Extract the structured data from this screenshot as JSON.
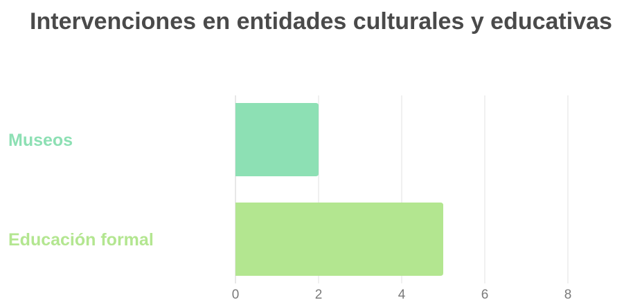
{
  "chart_data": {
    "type": "bar",
    "orientation": "horizontal",
    "title": "Intervenciones en entidades culturales y educativas",
    "categories": [
      "Museos",
      "Educación formal"
    ],
    "values": [
      2,
      5
    ],
    "colors": [
      "#8de0b4",
      "#b3e690"
    ],
    "xlim": [
      0,
      8
    ],
    "xticks": [
      0,
      2,
      4,
      6,
      8
    ],
    "grid": true,
    "legend": "none"
  }
}
